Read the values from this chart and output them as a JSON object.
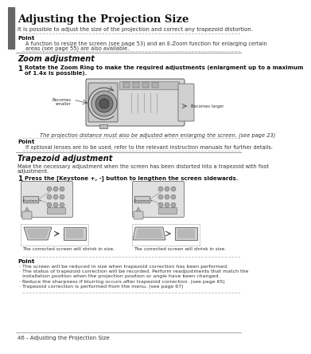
{
  "page_number": "46 - Adjusting the Projection Size",
  "title": "Adjusting the Projection Size",
  "title_intro": "It is possible to adjust the size of the projection and correct any trapezoid distortion.",
  "point1_text_l1": "A function to resize the screen (see page 53) and an E-Zoom function for enlarging certain",
  "point1_text_l2": "areas (see page 55) are also available.",
  "section1": "Zoom adjustment",
  "step1_l1": "Rotate the Zoom Ring to make the required adjustments (enlargment up to a maximum",
  "step1_l2": "of 1.4x is possible).",
  "zoom_caption": "The projection distance must also be adjusted when enlarging the screen. (see page 23)",
  "point2_text": "If optional lenses are to be used, refer to the relevant instruction manuals for further details.",
  "section2": "Trapezoid adjustment",
  "section2_l1": "Make the necessary adjustment when the screen has been distorted into a trapezoid with foot",
  "section2_l2": "adjustment.",
  "step2": "Press the [Keystone +, -] button to lengthen the screen sidewards.",
  "caption_lr": "The corrected screen will shrink in size.",
  "point3_b1": "· The screen will be reduced in size when trapezoid correction has been performed.",
  "point3_b2a": "· The status of trapezoid correction will be recorded. Perform readjustments that match the",
  "point3_b2b": "  installation position when the projection position or angle have been changed.",
  "point3_b3": "· Reduce the sharpness if blurring occurs after trapezoid correction. (see page 65)",
  "point3_b4": "· Trapezoid correction is performed from the menu. (see page 67)",
  "bg": "#ffffff",
  "sidebar_c": "#666666",
  "tc": "#111111",
  "gray": "#aaaaaa",
  "dkgray": "#444444",
  "ltgray": "#cccccc",
  "mdgray": "#888888"
}
